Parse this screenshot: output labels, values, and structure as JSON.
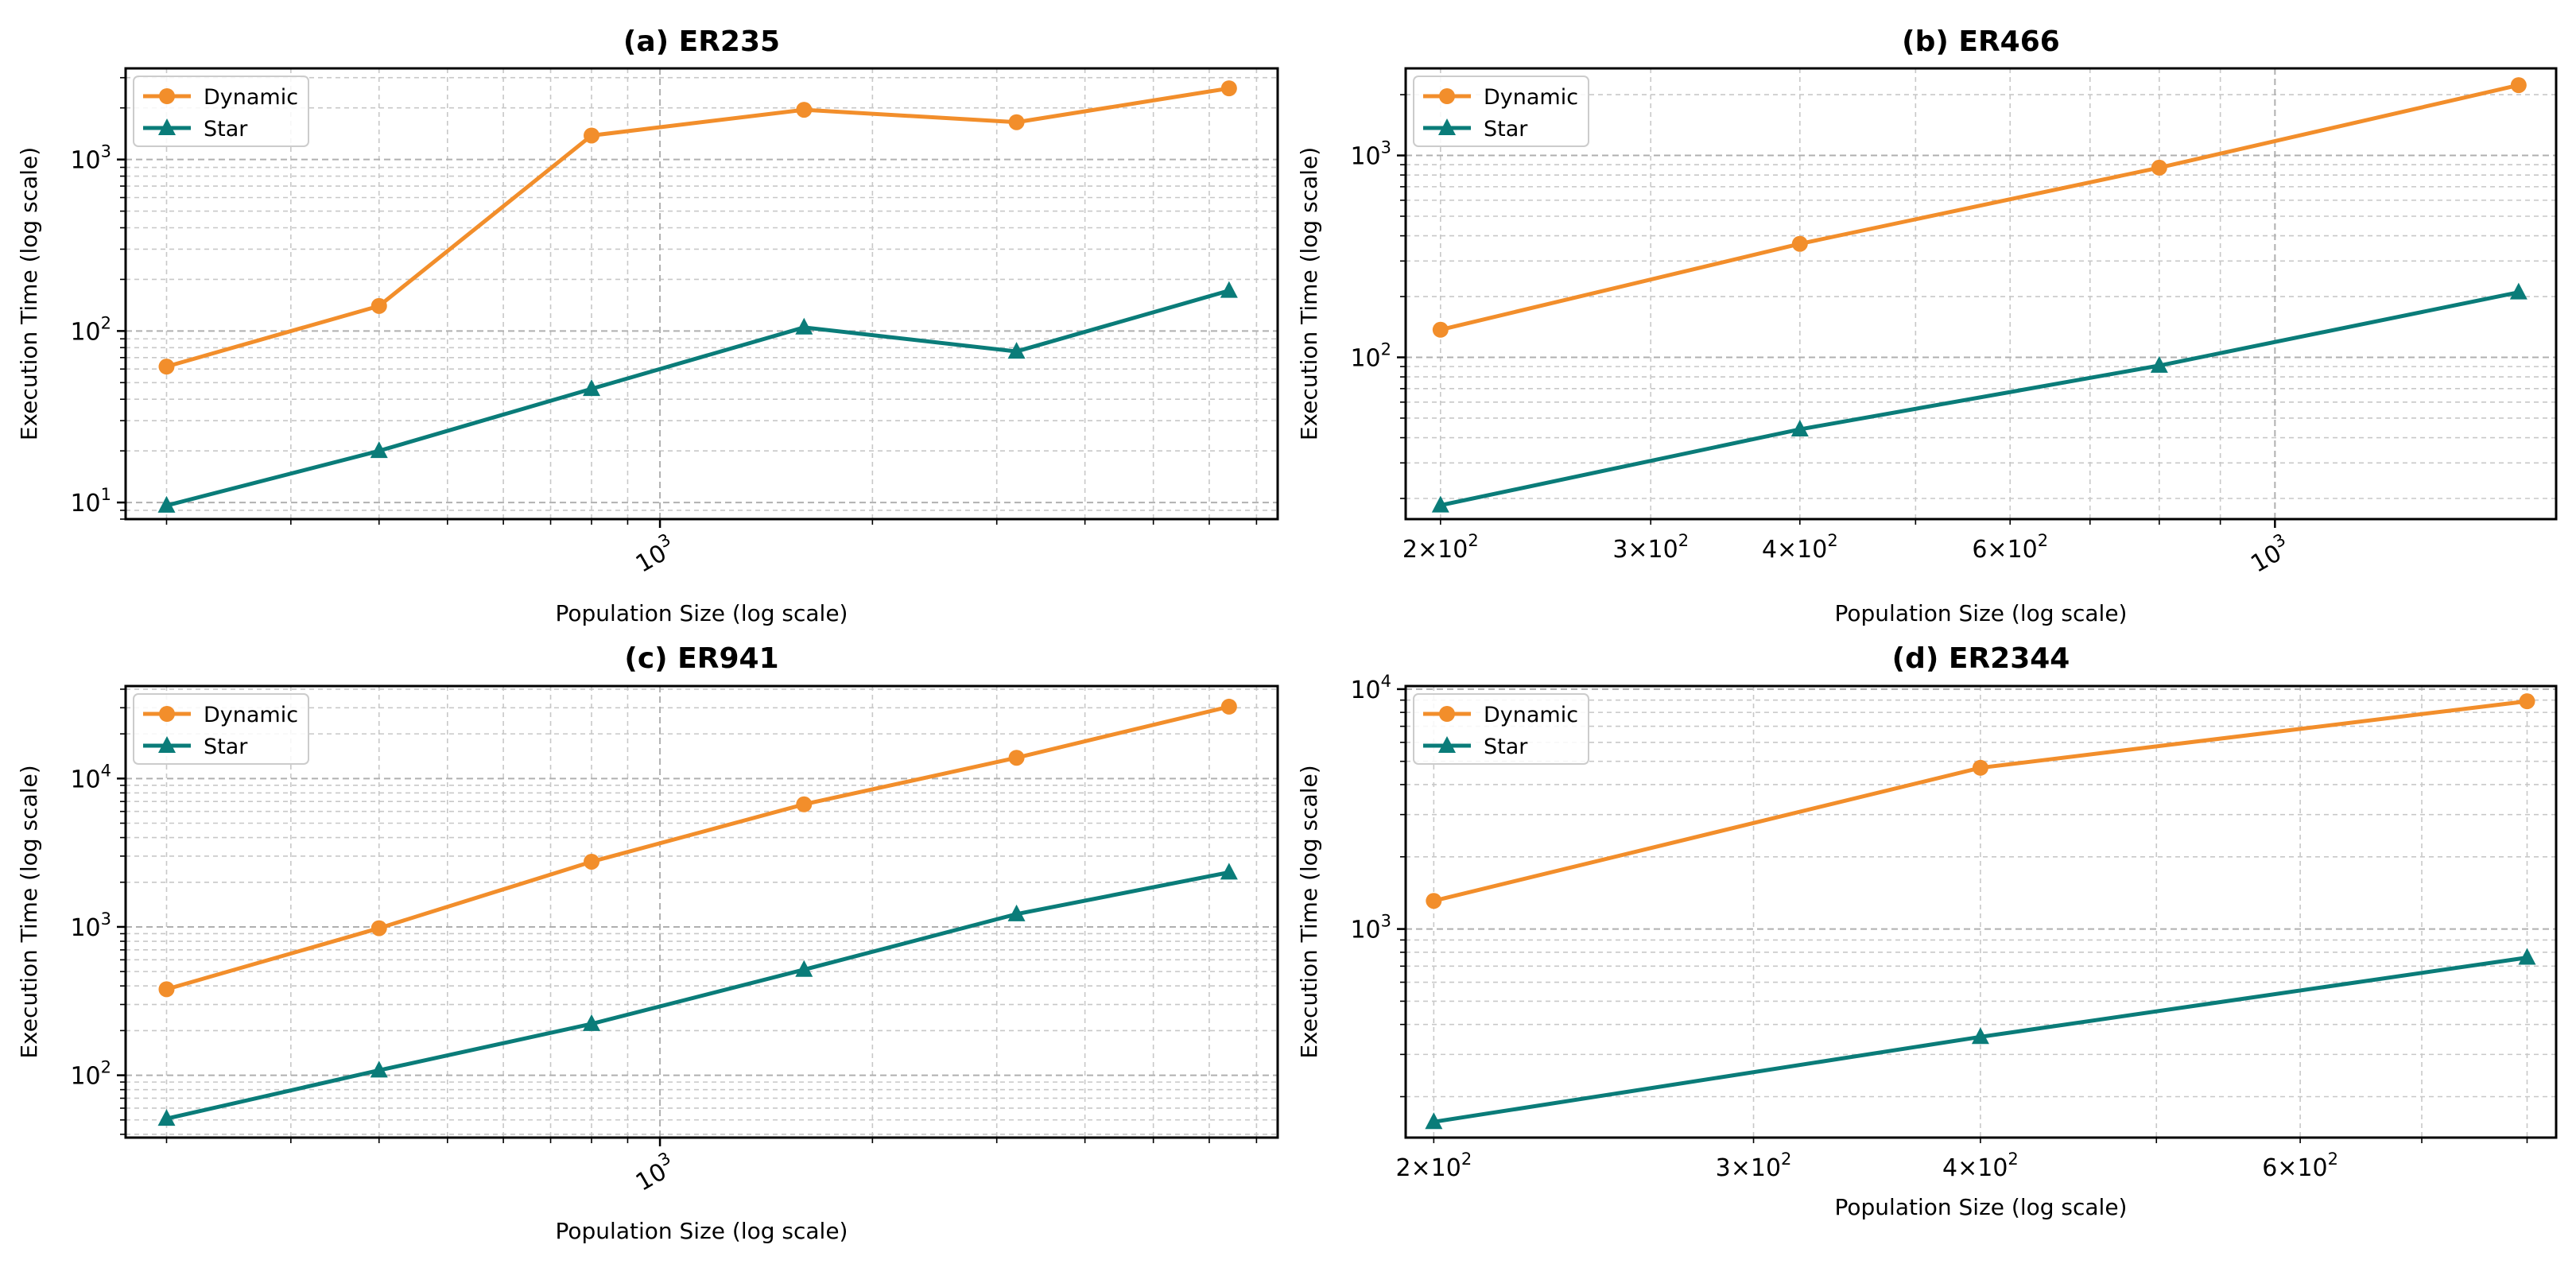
{
  "colors": {
    "dynamic": "#f28e2b",
    "star": "#0a7c79"
  },
  "chart_data": [
    {
      "type": "line",
      "title": "(a) ER235",
      "xlabel": "Population Size (log scale)",
      "ylabel": "Execution Time (log scale)",
      "xscale": "log",
      "yscale": "log",
      "xlim": [
        175,
        7500
      ],
      "ylim": [
        8,
        3400
      ],
      "x": [
        200,
        400,
        800,
        1600,
        3200,
        6400
      ],
      "series": [
        {
          "name": "Dynamic",
          "marker": "circle",
          "values": [
            62,
            140,
            1380,
            1950,
            1650,
            2600
          ]
        },
        {
          "name": "Star",
          "marker": "triangle",
          "values": [
            9.6,
            20,
            46,
            105,
            76,
            172
          ]
        }
      ],
      "x_major_ticks": [
        {
          "value": 1000,
          "base": "10",
          "exp": "3"
        }
      ],
      "y_major_ticks": [
        {
          "value": 10,
          "base": "10",
          "exp": "1"
        },
        {
          "value": 100,
          "base": "10",
          "exp": "2"
        },
        {
          "value": 1000,
          "base": "10",
          "exp": "3"
        }
      ],
      "x_tick_rotation": 30,
      "legend": {
        "position": "top-left",
        "entries": [
          "Dynamic",
          "Star"
        ]
      },
      "grid": true
    },
    {
      "type": "line",
      "title": "(b) ER466",
      "xlabel": "Population Size (log scale)",
      "ylabel": "Execution Time (log scale)",
      "xscale": "log",
      "yscale": "log",
      "xlim": [
        187,
        1720
      ],
      "ylim": [
        15.8,
        2700
      ],
      "x": [
        200,
        400,
        800,
        1600
      ],
      "series": [
        {
          "name": "Dynamic",
          "marker": "circle",
          "values": [
            137,
            365,
            870,
            2230
          ]
        },
        {
          "name": "Star",
          "marker": "triangle",
          "values": [
            18.5,
            44,
            91,
            210
          ]
        }
      ],
      "x_major_ticks": [
        {
          "value": 1000,
          "base": "10",
          "exp": "3"
        }
      ],
      "x_minor_labeled_ticks": [
        {
          "value": 200,
          "base": "2×10",
          "exp": "2"
        },
        {
          "value": 300,
          "base": "3×10",
          "exp": "2"
        },
        {
          "value": 400,
          "base": "4×10",
          "exp": "2"
        },
        {
          "value": 600,
          "base": "6×10",
          "exp": "2"
        }
      ],
      "y_major_ticks": [
        {
          "value": 100,
          "base": "10",
          "exp": "2"
        },
        {
          "value": 1000,
          "base": "10",
          "exp": "3"
        }
      ],
      "x_tick_rotation": 30,
      "legend": {
        "position": "top-left",
        "entries": [
          "Dynamic",
          "Star"
        ]
      },
      "grid": true
    },
    {
      "type": "line",
      "title": "(c) ER941",
      "xlabel": "Population Size (log scale)",
      "ylabel": "Execution Time (log scale)",
      "xscale": "log",
      "yscale": "log",
      "xlim": [
        175,
        7500
      ],
      "ylim": [
        38,
        42000
      ],
      "x": [
        200,
        400,
        800,
        1600,
        3200,
        6400
      ],
      "series": [
        {
          "name": "Dynamic",
          "marker": "circle",
          "values": [
            380,
            980,
            2750,
            6700,
            13800,
            30500
          ]
        },
        {
          "name": "Star",
          "marker": "triangle",
          "values": [
            51,
            108,
            222,
            515,
            1220,
            2330
          ]
        }
      ],
      "x_major_ticks": [
        {
          "value": 1000,
          "base": "10",
          "exp": "3"
        }
      ],
      "y_major_ticks": [
        {
          "value": 100,
          "base": "10",
          "exp": "2"
        },
        {
          "value": 1000,
          "base": "10",
          "exp": "3"
        },
        {
          "value": 10000,
          "base": "10",
          "exp": "4"
        }
      ],
      "x_tick_rotation": 30,
      "legend": {
        "position": "top-left",
        "entries": [
          "Dynamic",
          "Star"
        ]
      },
      "grid": true
    },
    {
      "type": "line",
      "title": "(d) ER2344",
      "xlabel": "Population Size (log scale)",
      "ylabel": "Execution Time (log scale)",
      "xscale": "log",
      "yscale": "log",
      "xlim": [
        193,
        830
      ],
      "ylim": [
        135,
        10300
      ],
      "x": [
        200,
        400,
        800
      ],
      "series": [
        {
          "name": "Dynamic",
          "marker": "circle",
          "values": [
            1310,
            4700,
            8900
          ]
        },
        {
          "name": "Star",
          "marker": "triangle",
          "values": [
            157,
            355,
            760
          ]
        }
      ],
      "x_minor_labeled_ticks": [
        {
          "value": 200,
          "base": "2×10",
          "exp": "2"
        },
        {
          "value": 300,
          "base": "3×10",
          "exp": "2"
        },
        {
          "value": 400,
          "base": "4×10",
          "exp": "2"
        },
        {
          "value": 600,
          "base": "6×10",
          "exp": "2"
        }
      ],
      "y_major_ticks": [
        {
          "value": 1000,
          "base": "10",
          "exp": "3"
        },
        {
          "value": 10000,
          "base": "10",
          "exp": "4"
        }
      ],
      "x_tick_rotation": 0,
      "legend": {
        "position": "top-left",
        "entries": [
          "Dynamic",
          "Star"
        ]
      },
      "grid": true
    }
  ]
}
